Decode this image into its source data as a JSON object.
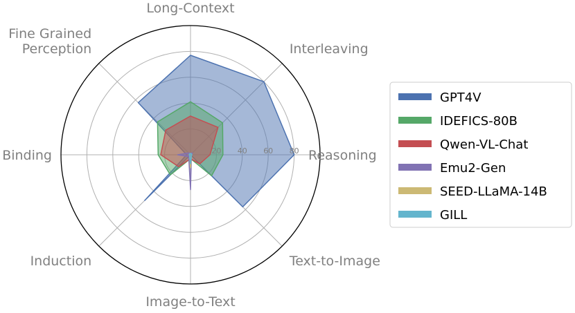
{
  "chart_data": {
    "type": "radar",
    "axes": [
      "Reasoning",
      "Interleaving",
      "Long-Context",
      "Fine Grained\nPerception",
      "Fast Binding",
      "Induction",
      "Image-to-Text",
      "Text-to-Image"
    ],
    "r_max": 100,
    "r_ticks": [
      20,
      40,
      60,
      80
    ],
    "r_tick_labels": [
      "20",
      "40",
      "60",
      "80"
    ],
    "grid": true,
    "legend_position": "right",
    "series": [
      {
        "name": "GPT4V",
        "color": "#4c72b0",
        "values": [
          80,
          80,
          77,
          57,
          3,
          50,
          0,
          57
        ]
      },
      {
        "name": "IDEFICS-80B",
        "color": "#55a868",
        "values": [
          25,
          35,
          41,
          36,
          25,
          22,
          3,
          23
        ]
      },
      {
        "name": "Qwen-VL-Chat",
        "color": "#c44e52",
        "values": [
          15,
          30,
          30,
          27,
          23,
          13,
          3,
          10
        ]
      },
      {
        "name": "Emu2-Gen",
        "color": "#8172b3",
        "values": [
          1,
          2,
          1,
          2,
          10,
          2,
          27,
          1
        ]
      },
      {
        "name": "SEED-LLaMA-14B",
        "color": "#ccb974",
        "values": [
          1,
          1,
          1,
          1,
          1,
          1,
          10,
          1
        ]
      },
      {
        "name": "GILL",
        "color": "#64b5cd",
        "values": [
          1,
          1,
          1,
          1,
          1,
          1,
          7,
          1
        ]
      }
    ]
  }
}
